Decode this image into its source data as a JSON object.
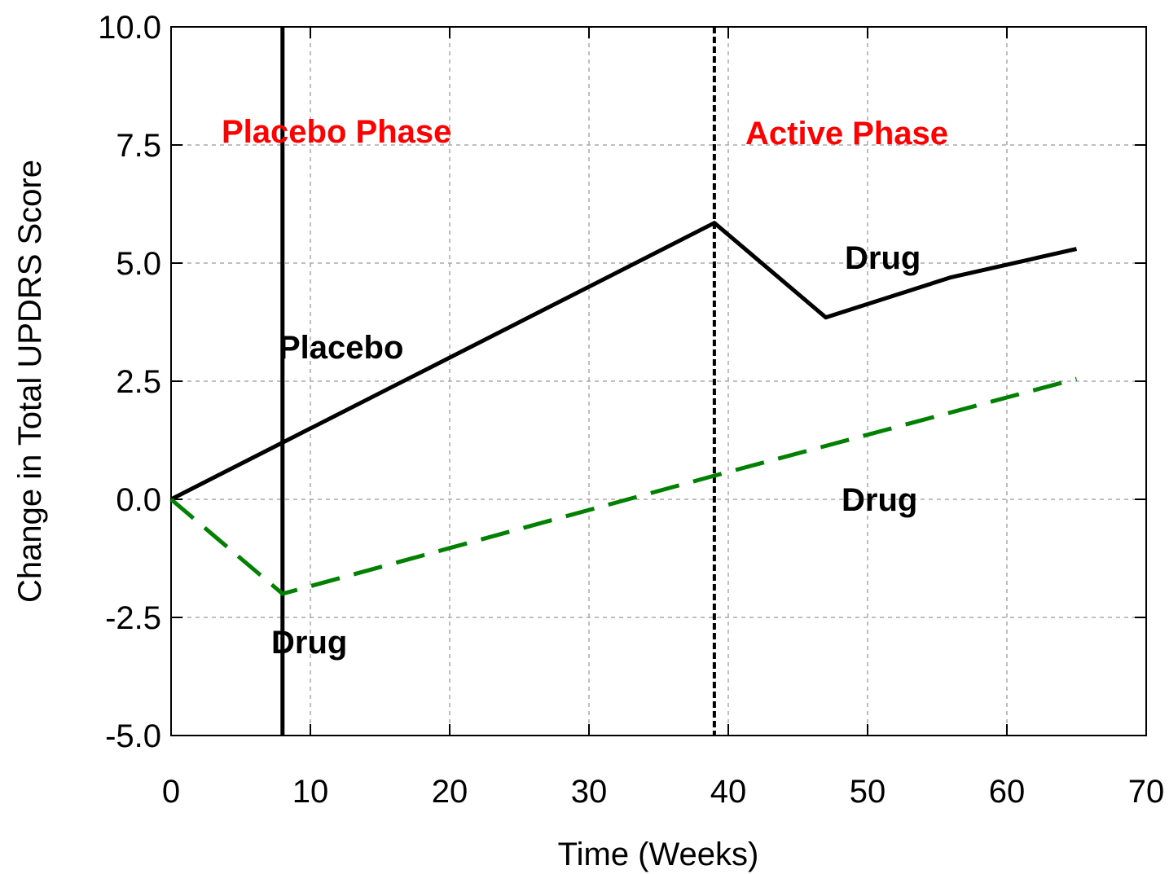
{
  "chart_data": {
    "type": "line",
    "xlabel": "Time (Weeks)",
    "ylabel": "Change in Total UPDRS Score",
    "xlim": [
      0,
      70
    ],
    "xticks": [
      0,
      10,
      20,
      30,
      40,
      50,
      60,
      70
    ],
    "ylim": [
      -5,
      10
    ],
    "yticks": [
      {
        "value": -5,
        "label": "-5.0"
      },
      -2.5,
      {
        "value": 0,
        "label": "0.0"
      },
      2.5,
      {
        "value": 5,
        "label": "5.0"
      },
      7.5,
      {
        "value": 10,
        "label": "10.0"
      }
    ],
    "grid": true,
    "series": [
      {
        "color": "#000000",
        "style": "solid",
        "x": [
          0,
          8,
          39,
          47,
          56,
          65
        ],
        "values": [
          0,
          1.2,
          5.85,
          3.85,
          4.7,
          5.3
        ]
      },
      {
        "color": "#008000",
        "style": "dashed",
        "x": [
          0,
          8,
          39,
          65
        ],
        "values": [
          0,
          -2.0,
          0.5,
          2.55
        ]
      }
    ],
    "vlines": [
      {
        "x": 8,
        "style": "solid",
        "color": "#000000"
      },
      {
        "x": 39,
        "style": "dashed",
        "color": "#000000"
      }
    ],
    "annotations": [
      {
        "text": "Placebo Phase",
        "color": "#ff0000"
      },
      {
        "text": "Active Phase",
        "color": "#ff0000"
      },
      {
        "text": "Placebo",
        "color": "#000000"
      },
      {
        "text": "Drug",
        "color": "#000000"
      },
      {
        "text": "Drug",
        "color": "#000000"
      },
      {
        "text": "Drug",
        "color": "#000000"
      }
    ]
  }
}
